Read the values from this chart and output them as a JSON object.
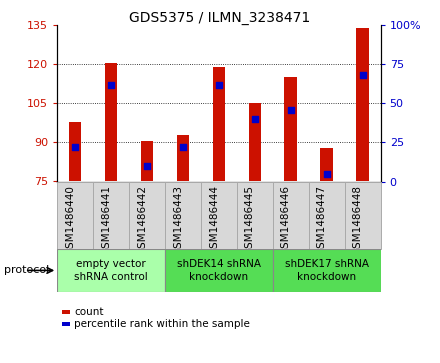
{
  "title": "GDS5375 / ILMN_3238471",
  "samples": [
    "GSM1486440",
    "GSM1486441",
    "GSM1486442",
    "GSM1486443",
    "GSM1486444",
    "GSM1486445",
    "GSM1486446",
    "GSM1486447",
    "GSM1486448"
  ],
  "count_values": [
    98,
    120.5,
    90.5,
    93,
    119,
    105,
    115,
    88,
    134
  ],
  "percentile_values": [
    22,
    62,
    10,
    22,
    62,
    40,
    46,
    5,
    68
  ],
  "ylim_left": [
    75,
    135
  ],
  "ylim_right": [
    0,
    100
  ],
  "yticks_left": [
    75,
    90,
    105,
    120,
    135
  ],
  "yticks_right": [
    0,
    25,
    50,
    75,
    100
  ],
  "bar_color": "#cc1100",
  "dot_color": "#0000cc",
  "bg_color": "#ffffff",
  "grid_color": "#000000",
  "protocol_groups": [
    {
      "label": "empty vector\nshRNA control",
      "start": 0,
      "end": 3,
      "color": "#aaffaa"
    },
    {
      "label": "shDEK14 shRNA\nknockdown",
      "start": 3,
      "end": 6,
      "color": "#55dd55"
    },
    {
      "label": "shDEK17 shRNA\nknockdown",
      "start": 6,
      "end": 9,
      "color": "#55dd55"
    }
  ],
  "legend_count_label": "count",
  "legend_pct_label": "percentile rank within the sample",
  "protocol_label": "protocol",
  "bar_width": 0.35,
  "cell_color": "#d8d8d8",
  "cell_edge_color": "#aaaaaa"
}
